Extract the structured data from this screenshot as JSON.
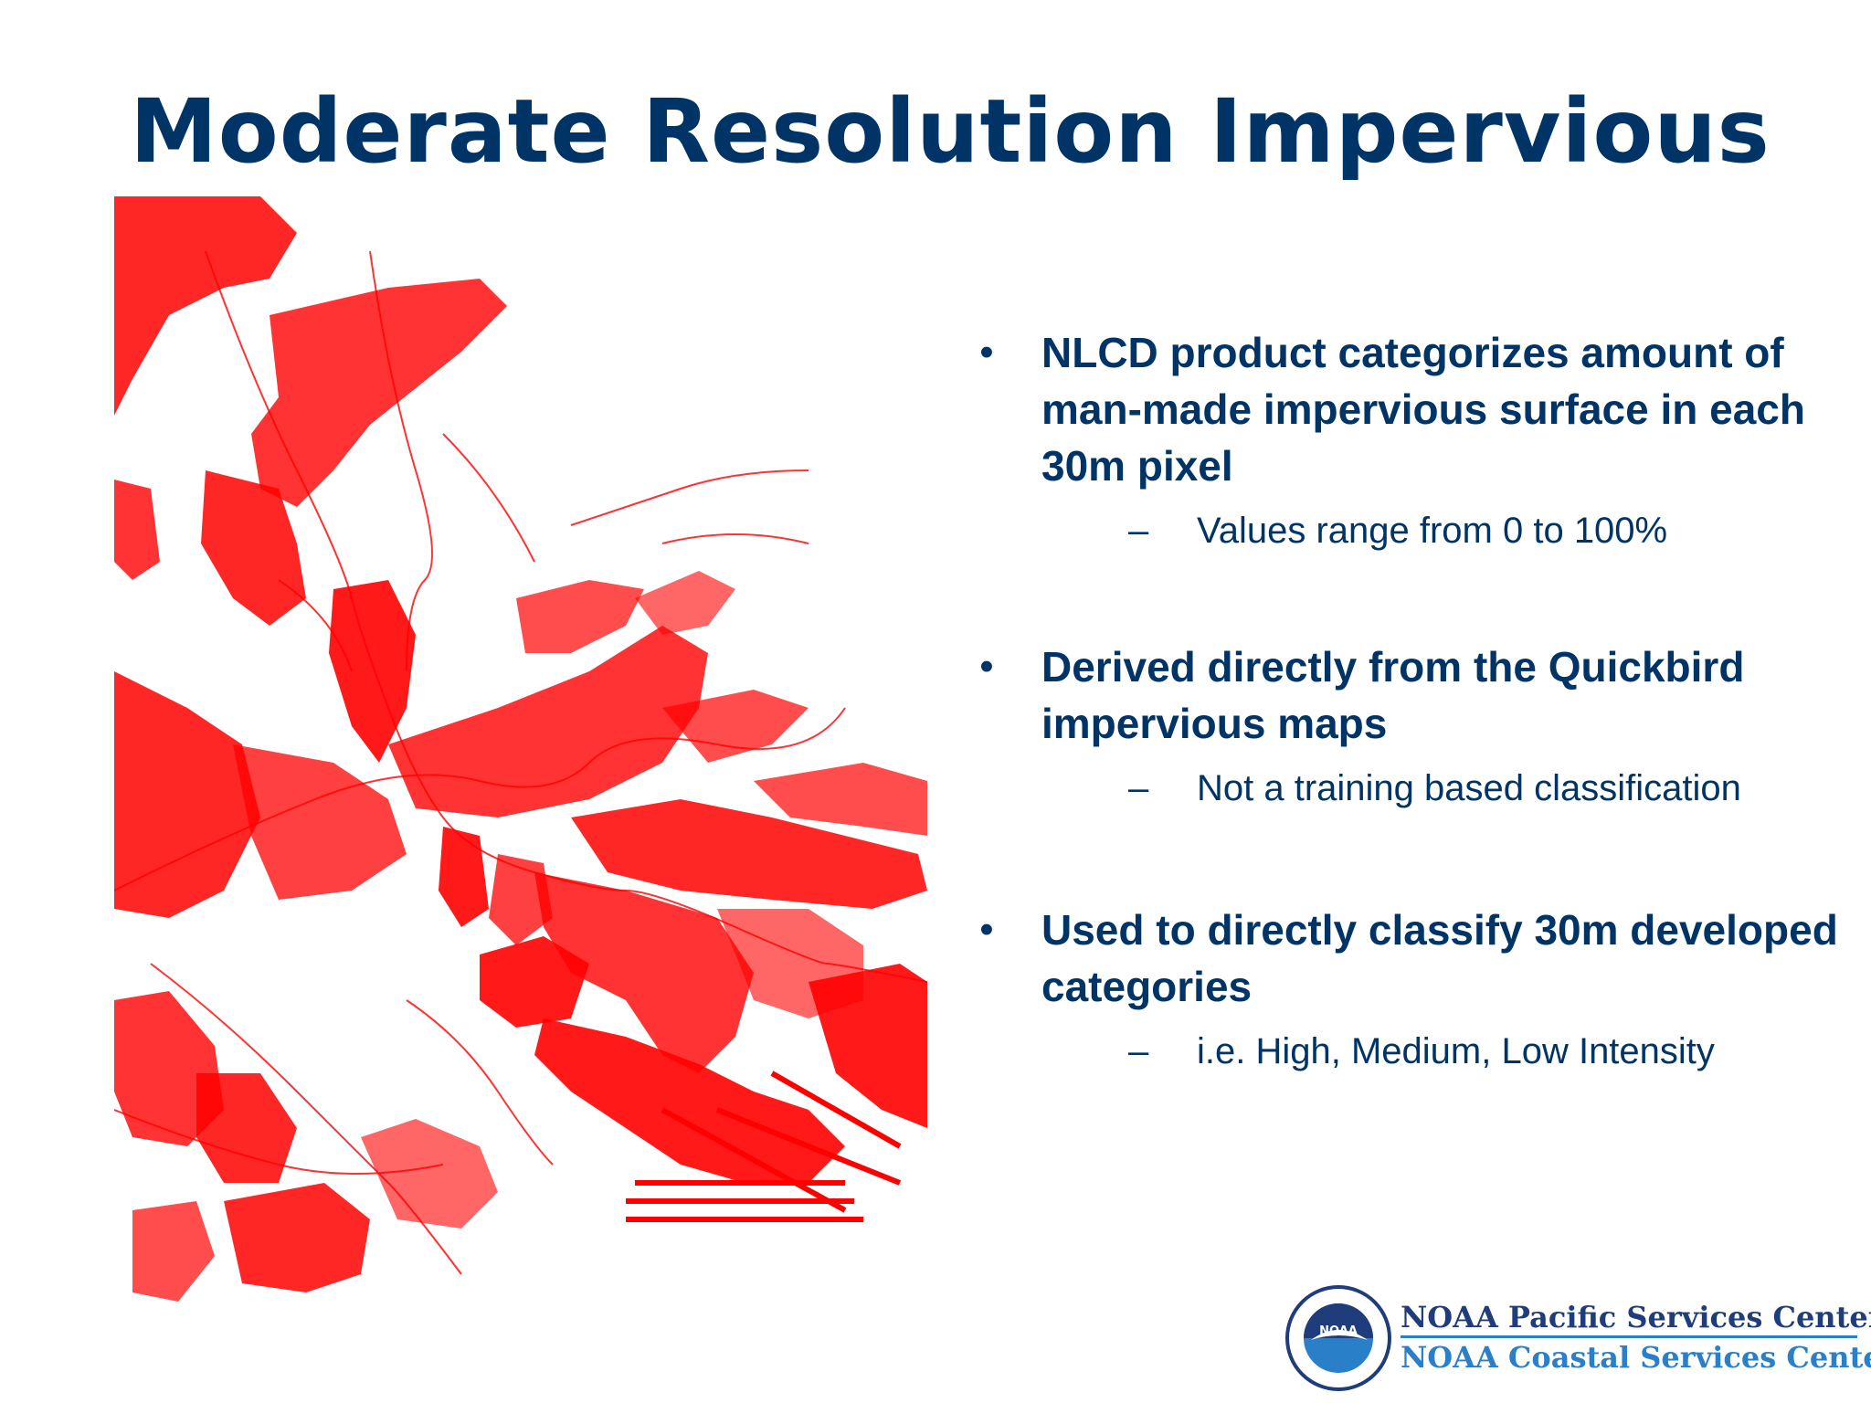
{
  "title": "Moderate Resolution Impervious",
  "colors": {
    "title": "#003466",
    "map_red": "#ff0000",
    "logo_dark": "#1f3d7a",
    "logo_light": "#2a7fc9"
  },
  "bullets": [
    {
      "marker": "•",
      "text": "NLCD product categorizes amount of man-made impervious surface in each 30m pixel",
      "sub": {
        "marker": "–",
        "text": "Values range from 0 to 100%"
      }
    },
    {
      "marker": "•",
      "text": "Derived directly from the Quickbird impervious maps",
      "sub": {
        "marker": "–",
        "text": "Not a training based classification"
      }
    },
    {
      "marker": "•",
      "text": "Used to directly classify 30m developed categories",
      "sub": {
        "marker": "–",
        "text": "i.e. High, Medium, Low Intensity"
      }
    }
  ],
  "logo": {
    "seal_text": "NOAA",
    "line1": "NOAA Pacific Services Center",
    "line2": "NOAA Coastal Services Center"
  },
  "map": {
    "icon": "impervious-surface-map"
  }
}
